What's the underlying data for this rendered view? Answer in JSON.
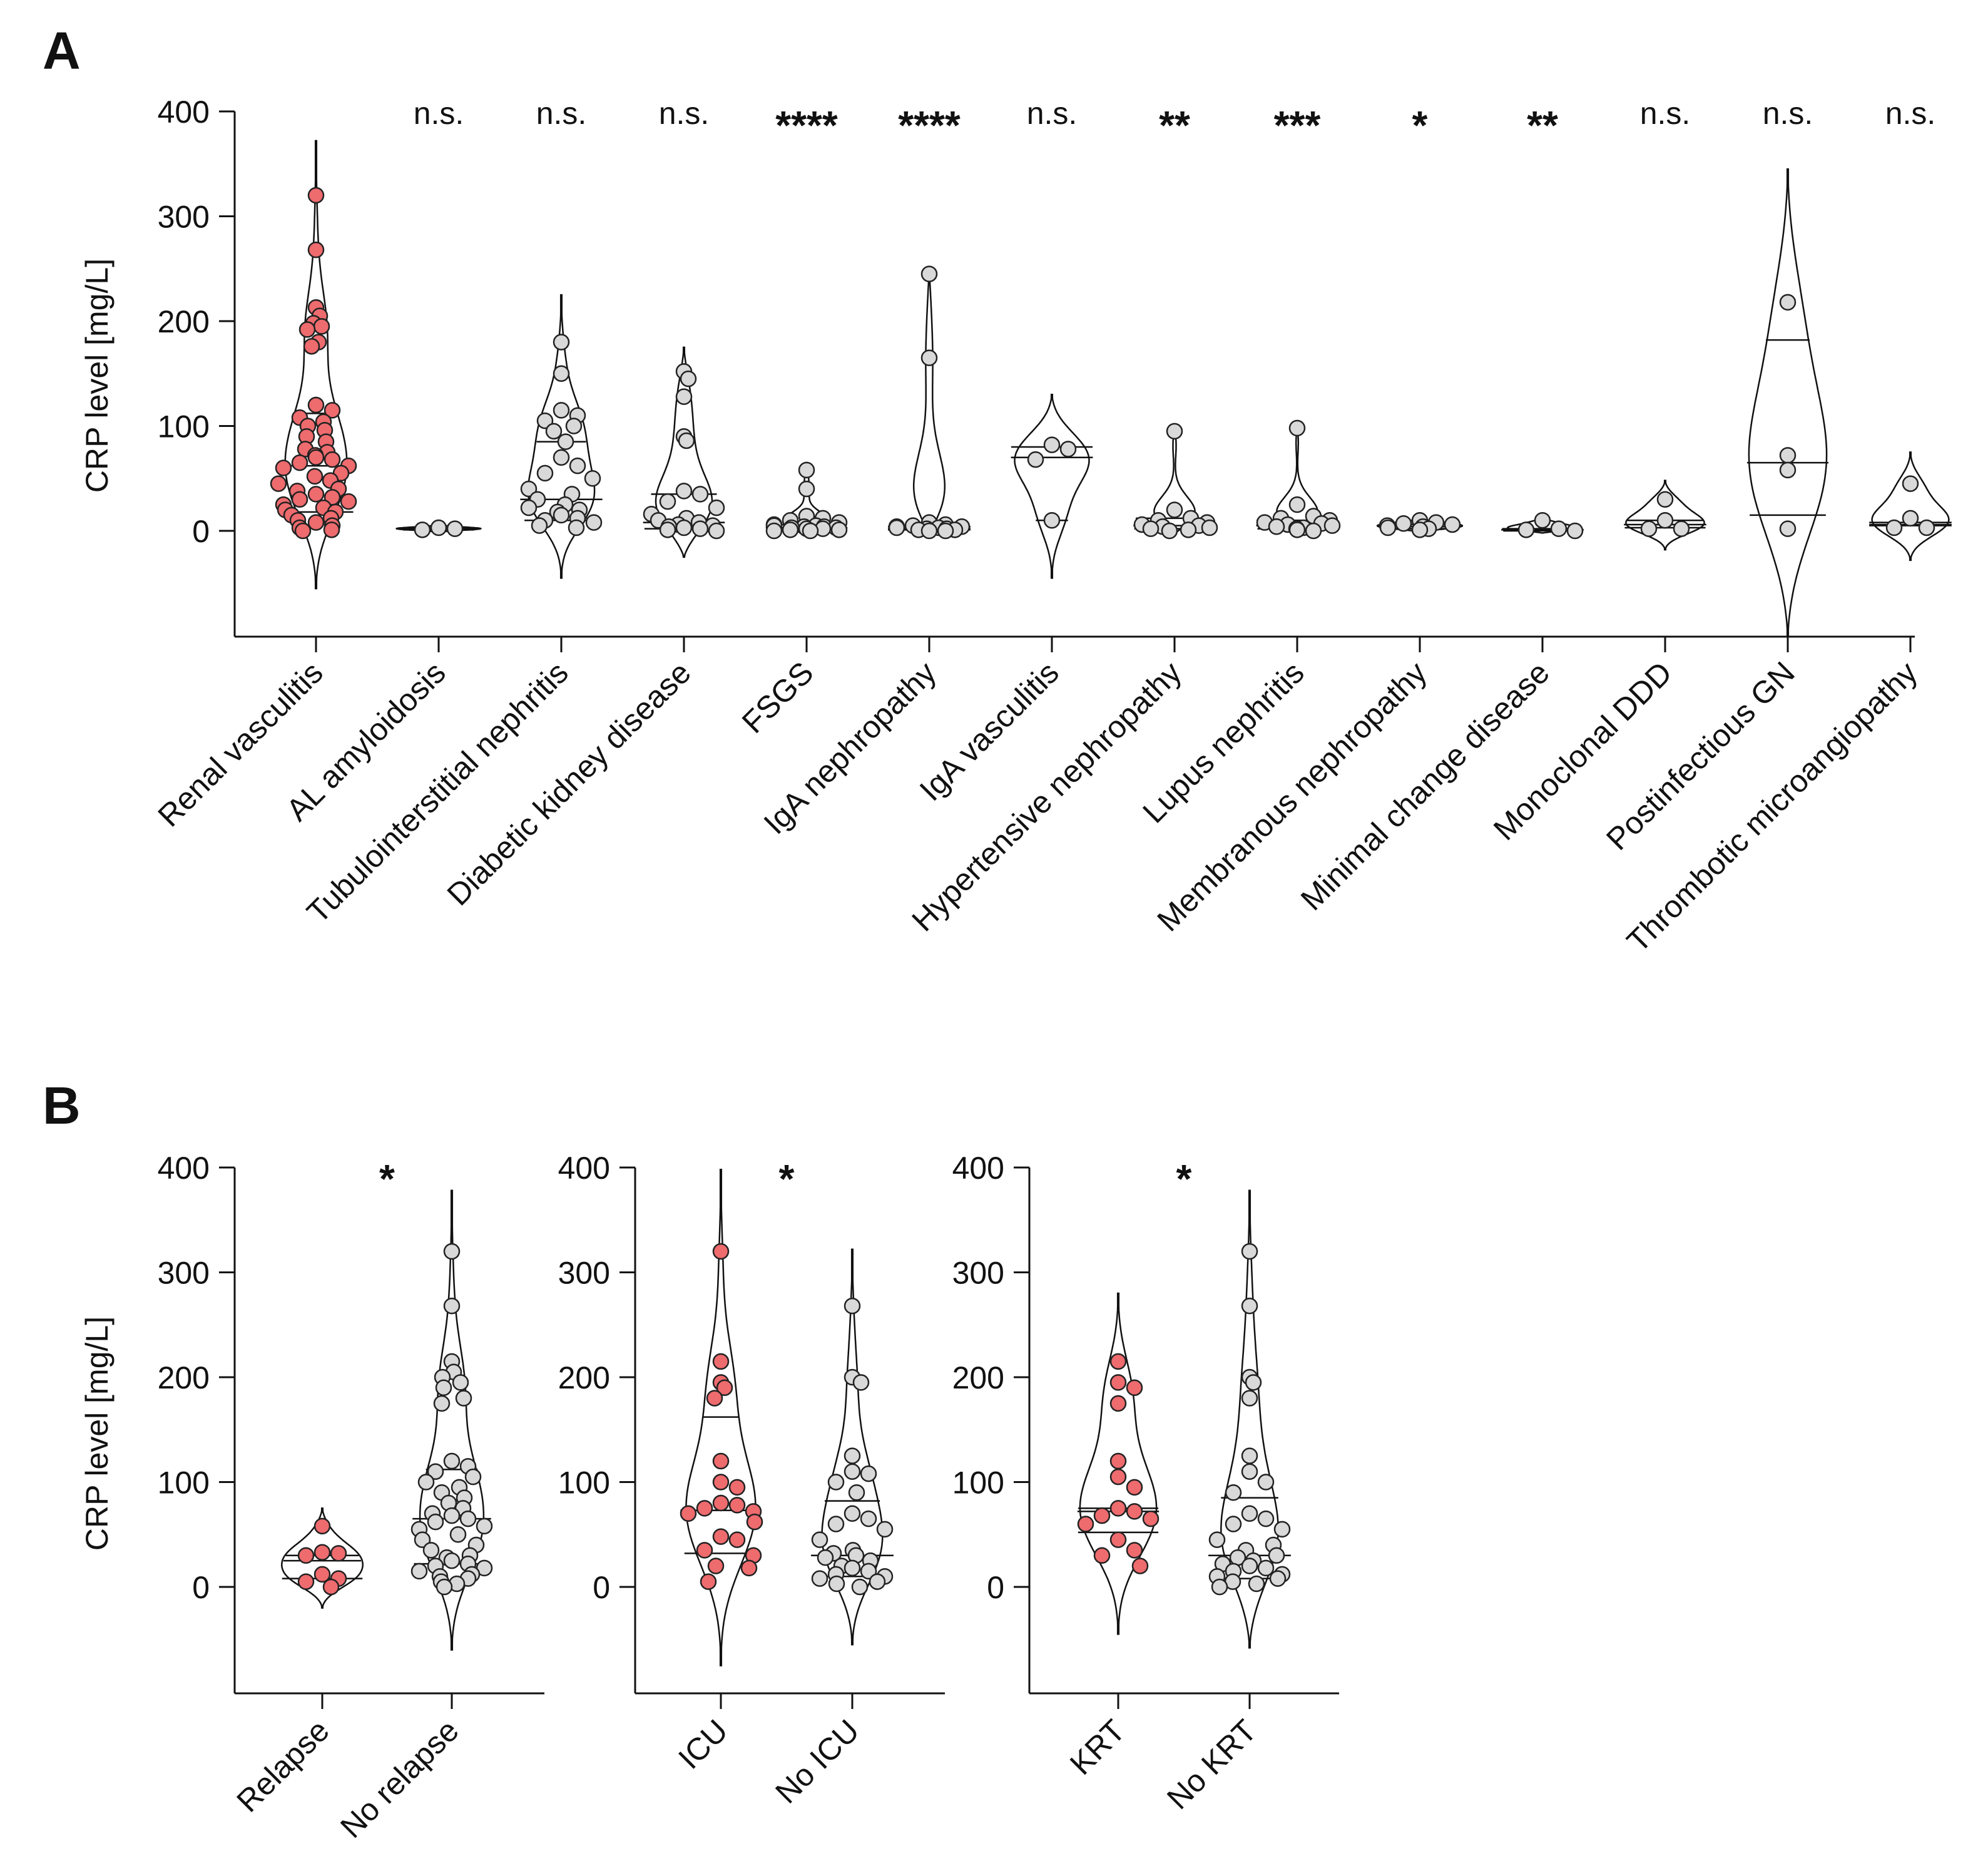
{
  "colors": {
    "highlight": "#ee6b6e",
    "neutral": "#d9d9d9",
    "ink": "#111111"
  },
  "chart_data": [
    {
      "panel": "A",
      "type": "violin",
      "ylabel": "CRP level [mg/L]",
      "ylim": [
        -100,
        400
      ],
      "yticks": [
        0,
        100,
        200,
        300,
        400
      ],
      "categories": [
        {
          "name": "Renal vasculitis",
          "sig": "",
          "color": "highlight",
          "range": [
            -55,
            372
          ],
          "quartiles": [
            18,
            62,
            112
          ],
          "values": [
            320,
            268,
            213,
            205,
            198,
            195,
            192,
            180,
            176,
            120,
            115,
            108,
            104,
            100,
            96,
            90,
            85,
            78,
            75,
            72,
            70,
            68,
            65,
            62,
            60,
            55,
            52,
            48,
            45,
            40,
            38,
            35,
            32,
            30,
            28,
            25,
            22,
            20,
            18,
            15,
            12,
            10,
            8,
            5,
            3,
            1,
            0
          ]
        },
        {
          "name": "AL amyloidosis",
          "sig": "n.s.",
          "color": "neutral",
          "range": [
            -2,
            7
          ],
          "quartiles": [
            1,
            2,
            3
          ],
          "values": [
            1,
            3,
            2
          ]
        },
        {
          "name": "Tubulointerstitial nephritis",
          "sig": "n.s.",
          "color": "neutral",
          "range": [
            -45,
            225
          ],
          "quartiles": [
            10,
            30,
            85
          ],
          "values": [
            180,
            150,
            115,
            110,
            105,
            100,
            95,
            85,
            70,
            62,
            55,
            50,
            40,
            35,
            30,
            25,
            22,
            20,
            18,
            15,
            12,
            10,
            8,
            5,
            3
          ]
        },
        {
          "name": "Diabetic kidney disease",
          "sig": "n.s.",
          "color": "neutral",
          "range": [
            -25,
            175
          ],
          "quartiles": [
            2,
            8,
            35
          ],
          "values": [
            152,
            145,
            128,
            90,
            86,
            38,
            35,
            28,
            22,
            16,
            12,
            10,
            8,
            6,
            5,
            4,
            3,
            2,
            1,
            0
          ]
        },
        {
          "name": "FSGS",
          "sig": "****",
          "color": "neutral",
          "range": [
            -5,
            65
          ],
          "quartiles": [
            1,
            3,
            6
          ],
          "values": [
            58,
            40,
            14,
            12,
            10,
            8,
            6,
            5,
            5,
            4,
            4,
            3,
            3,
            2,
            2,
            1,
            1,
            0,
            0
          ]
        },
        {
          "name": "IgA nephropathy",
          "sig": "****",
          "color": "neutral",
          "range": [
            -3,
            250
          ],
          "quartiles": [
            1,
            2,
            4
          ],
          "values": [
            245,
            165,
            8,
            6,
            5,
            4,
            4,
            3,
            3,
            2,
            2,
            1,
            1,
            0,
            0
          ]
        },
        {
          "name": "IgA vasculitis",
          "sig": "n.s.",
          "color": "neutral",
          "range": [
            -45,
            130
          ],
          "quartiles": [
            10,
            70,
            80
          ],
          "values": [
            82,
            78,
            68,
            10
          ]
        },
        {
          "name": "Hypertensive nephropathy",
          "sig": "**",
          "color": "neutral",
          "range": [
            -3,
            100
          ],
          "quartiles": [
            2,
            5,
            12
          ],
          "values": [
            95,
            20,
            12,
            10,
            8,
            6,
            5,
            4,
            3,
            2,
            1,
            0
          ]
        },
        {
          "name": "Lupus nephritis",
          "sig": "***",
          "color": "neutral",
          "range": [
            -3,
            100
          ],
          "quartiles": [
            2,
            5,
            10
          ],
          "values": [
            98,
            25,
            14,
            12,
            10,
            8,
            7,
            6,
            5,
            4,
            3,
            2,
            1,
            0
          ]
        },
        {
          "name": "Membranous nephropathy",
          "sig": "*",
          "color": "neutral",
          "range": [
            -2,
            12
          ],
          "quartiles": [
            2,
            4,
            6
          ],
          "values": [
            10,
            8,
            7,
            6,
            5,
            4,
            3,
            2,
            1
          ]
        },
        {
          "name": "Minimal change disease",
          "sig": "**",
          "color": "neutral",
          "range": [
            -2,
            12
          ],
          "quartiles": [
            0,
            1,
            2
          ],
          "values": [
            10,
            2,
            1,
            0
          ]
        },
        {
          "name": "Monoclonal DDD",
          "sig": "n.s.",
          "color": "neutral",
          "range": [
            -18,
            48
          ],
          "quartiles": [
            3,
            6,
            10
          ],
          "values": [
            30,
            10,
            2,
            2
          ]
        },
        {
          "name": "Postinfectious GN",
          "sig": "n.s.",
          "color": "neutral",
          "range": [
            -100,
            345
          ],
          "quartiles": [
            15,
            65,
            182
          ],
          "values": [
            218,
            72,
            58,
            2
          ]
        },
        {
          "name": "Thrombotic microangiopathy",
          "sig": "n.s.",
          "color": "neutral",
          "range": [
            -28,
            75
          ],
          "quartiles": [
            5,
            6,
            8
          ],
          "values": [
            45,
            12,
            3,
            3
          ]
        }
      ]
    },
    {
      "panel": "B",
      "type": "violin",
      "ylabel": "CRP level [mg/L]",
      "ylim": [
        -100,
        400
      ],
      "yticks": [
        0,
        100,
        200,
        300,
        400
      ],
      "subplots": [
        {
          "sig": "*",
          "groups": [
            {
              "name": "Relapse",
              "color": "highlight",
              "range": [
                -20,
                75
              ],
              "quartiles": [
                8,
                25,
                30
              ],
              "values": [
                58,
                33,
                32,
                30,
                12,
                8,
                5,
                0
              ]
            },
            {
              "name": "No relapse",
              "color": "neutral",
              "range": [
                -60,
                378
              ],
              "quartiles": [
                22,
                65,
                112
              ],
              "values": [
                320,
                268,
                215,
                205,
                200,
                195,
                190,
                180,
                175,
                120,
                115,
                110,
                105,
                100,
                95,
                90,
                85,
                80,
                75,
                70,
                68,
                65,
                62,
                58,
                55,
                50,
                45,
                40,
                35,
                30,
                28,
                25,
                22,
                20,
                18,
                15,
                12,
                10,
                8,
                5,
                3,
                0
              ]
            }
          ]
        },
        {
          "sig": "*",
          "groups": [
            {
              "name": "ICU",
              "color": "highlight",
              "range": [
                -75,
                398
              ],
              "quartiles": [
                32,
                73,
                162
              ],
              "values": [
                320,
                215,
                195,
                190,
                180,
                120,
                100,
                95,
                80,
                78,
                75,
                72,
                70,
                62,
                48,
                45,
                35,
                30,
                20,
                18,
                5
              ]
            },
            {
              "name": "No ICU",
              "color": "neutral",
              "range": [
                -55,
                322
              ],
              "quartiles": [
                10,
                30,
                82
              ],
              "values": [
                268,
                200,
                195,
                125,
                110,
                108,
                100,
                90,
                70,
                65,
                60,
                55,
                45,
                35,
                32,
                30,
                28,
                25,
                20,
                18,
                15,
                12,
                10,
                8,
                5,
                3,
                0
              ]
            }
          ]
        },
        {
          "sig": "*",
          "groups": [
            {
              "name": "KRT",
              "color": "highlight",
              "range": [
                -45,
                280
              ],
              "quartiles": [
                52,
                72,
                75
              ],
              "values": [
                215,
                195,
                190,
                175,
                120,
                105,
                95,
                75,
                72,
                68,
                65,
                60,
                45,
                35,
                30,
                20
              ]
            },
            {
              "name": "No KRT",
              "color": "neutral",
              "range": [
                -58,
                378
              ],
              "quartiles": [
                8,
                30,
                85
              ],
              "values": [
                320,
                268,
                200,
                195,
                180,
                125,
                110,
                100,
                90,
                70,
                65,
                60,
                55,
                45,
                40,
                35,
                30,
                28,
                25,
                22,
                20,
                18,
                15,
                12,
                10,
                8,
                5,
                3,
                0
              ]
            }
          ]
        }
      ]
    }
  ]
}
